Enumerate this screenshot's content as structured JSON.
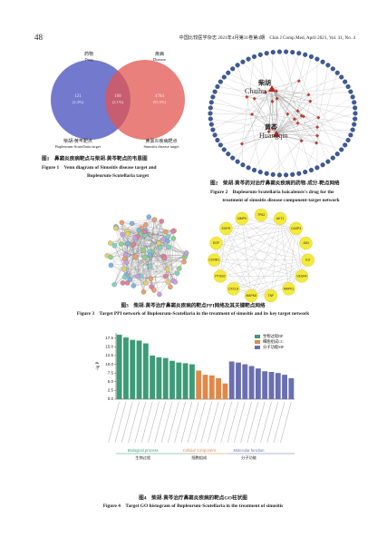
{
  "header": {
    "page_number": "48",
    "journal": "中国比较医学杂志 2021年4月第31卷第4期　Chin J Comp Med, April 2021, Vol. 31, No. 4"
  },
  "figure1": {
    "drug_cn": "药物",
    "drug_en": "Drug",
    "disease_cn": "疾病",
    "disease_en": "Disease",
    "left_count": "121",
    "left_pct": "(2.4%)",
    "middle_count": "108",
    "middle_pct": "(2.1%)",
    "right_count": "4784",
    "right_pct": "(95.5%)",
    "left_label_cn": "柴胡-黄芩靶点",
    "left_label_en": "Bupleurum-Scutellaria target",
    "right_label_cn": "鼻窦炎疾病靶点",
    "right_label_en": "Sinusitis disease target",
    "caption_cn": "图1　鼻窦炎疾病靶点与柴胡-黄芩靶点的韦恩图",
    "caption_en_1": "Figure 1　Venn diagram of Sinusitis disease target and",
    "caption_en_2": "Bupleurum-Scutellaria target"
  },
  "figure2": {
    "hub1_cn": "柴胡",
    "hub1_en": "Chaihu",
    "hub2_cn": "黄芩",
    "hub2_en": "Huangqin",
    "caption_cn": "图2　柴胡-黄芩药对治疗鼻窦炎疾病的药物-成分-靶点网络",
    "caption_en_1": "Figure 2　Bupleurum-Scutellaria baicalensis's drug for the",
    "caption_en_2": "treatment of sinusitis disease-component-target network"
  },
  "figure3": {
    "nodes": [
      "TP53",
      "AKT1",
      "CASP3",
      "JUN",
      "IL6",
      "VEGFA",
      "MAPK1",
      "TNF",
      "MAPK8",
      "CXCL8",
      "PTGS2",
      "CCND1",
      "EGF",
      "EGFR",
      "MMP9"
    ],
    "caption_cn": "图3　柴胡-黄芩治疗鼻窦炎疾病的靶点PPI网络及其关键靶点网络",
    "caption_en": "Figure 3　Target PPI network of Bupleurum-Scutellaria in the treatment of sinusitis and its key target network"
  },
  "figure4": {
    "chart_data": {
      "type": "bar",
      "y_label": "-lg P",
      "ylim": [
        0,
        19
      ],
      "yticks": [
        {
          "value": 0,
          "label": "0.0"
        },
        {
          "value": 2.5,
          "label": "2.5"
        },
        {
          "value": 5,
          "label": "5.0"
        },
        {
          "value": 7.5,
          "label": "7.5"
        },
        {
          "value": 10,
          "label": "10.0"
        },
        {
          "value": 12.5,
          "label": "12.5"
        },
        {
          "value": 15,
          "label": "15.0"
        },
        {
          "value": 17.5,
          "label": "17.5"
        }
      ],
      "series": [
        {
          "name": "生物过程BP",
          "color": "#3d9b78",
          "values": [
            18.5,
            17.7,
            17.0,
            16.8,
            16.0,
            12.5,
            12.0,
            11.8,
            11.0,
            10.5,
            10.3,
            10.0
          ]
        },
        {
          "name": "细胞组成CC",
          "color": "#e0884a",
          "values": [
            8.2,
            7.0,
            6.8,
            6.0,
            4.5
          ]
        },
        {
          "name": "分子功能MF",
          "color": "#6a6fb0",
          "values": [
            10.8,
            10.5,
            10.0,
            9.5,
            8.8,
            8.0,
            7.8,
            7.5,
            7.0,
            6.0
          ]
        }
      ],
      "group_labels": [
        {
          "en": "Biological process",
          "cn": "生物过程"
        },
        {
          "en": "Cellular component",
          "cn": "细胞组成"
        },
        {
          "en": "Molecular function",
          "cn": "分子功能"
        }
      ]
    },
    "caption_cn": "图4　柴胡-黄芩治疗鼻窦炎疾病的靶点GO柱状图",
    "caption_en": "Figure 4　Target GO histogram of Bupleurum-Scutellaria in the treatment of sinusitis"
  }
}
